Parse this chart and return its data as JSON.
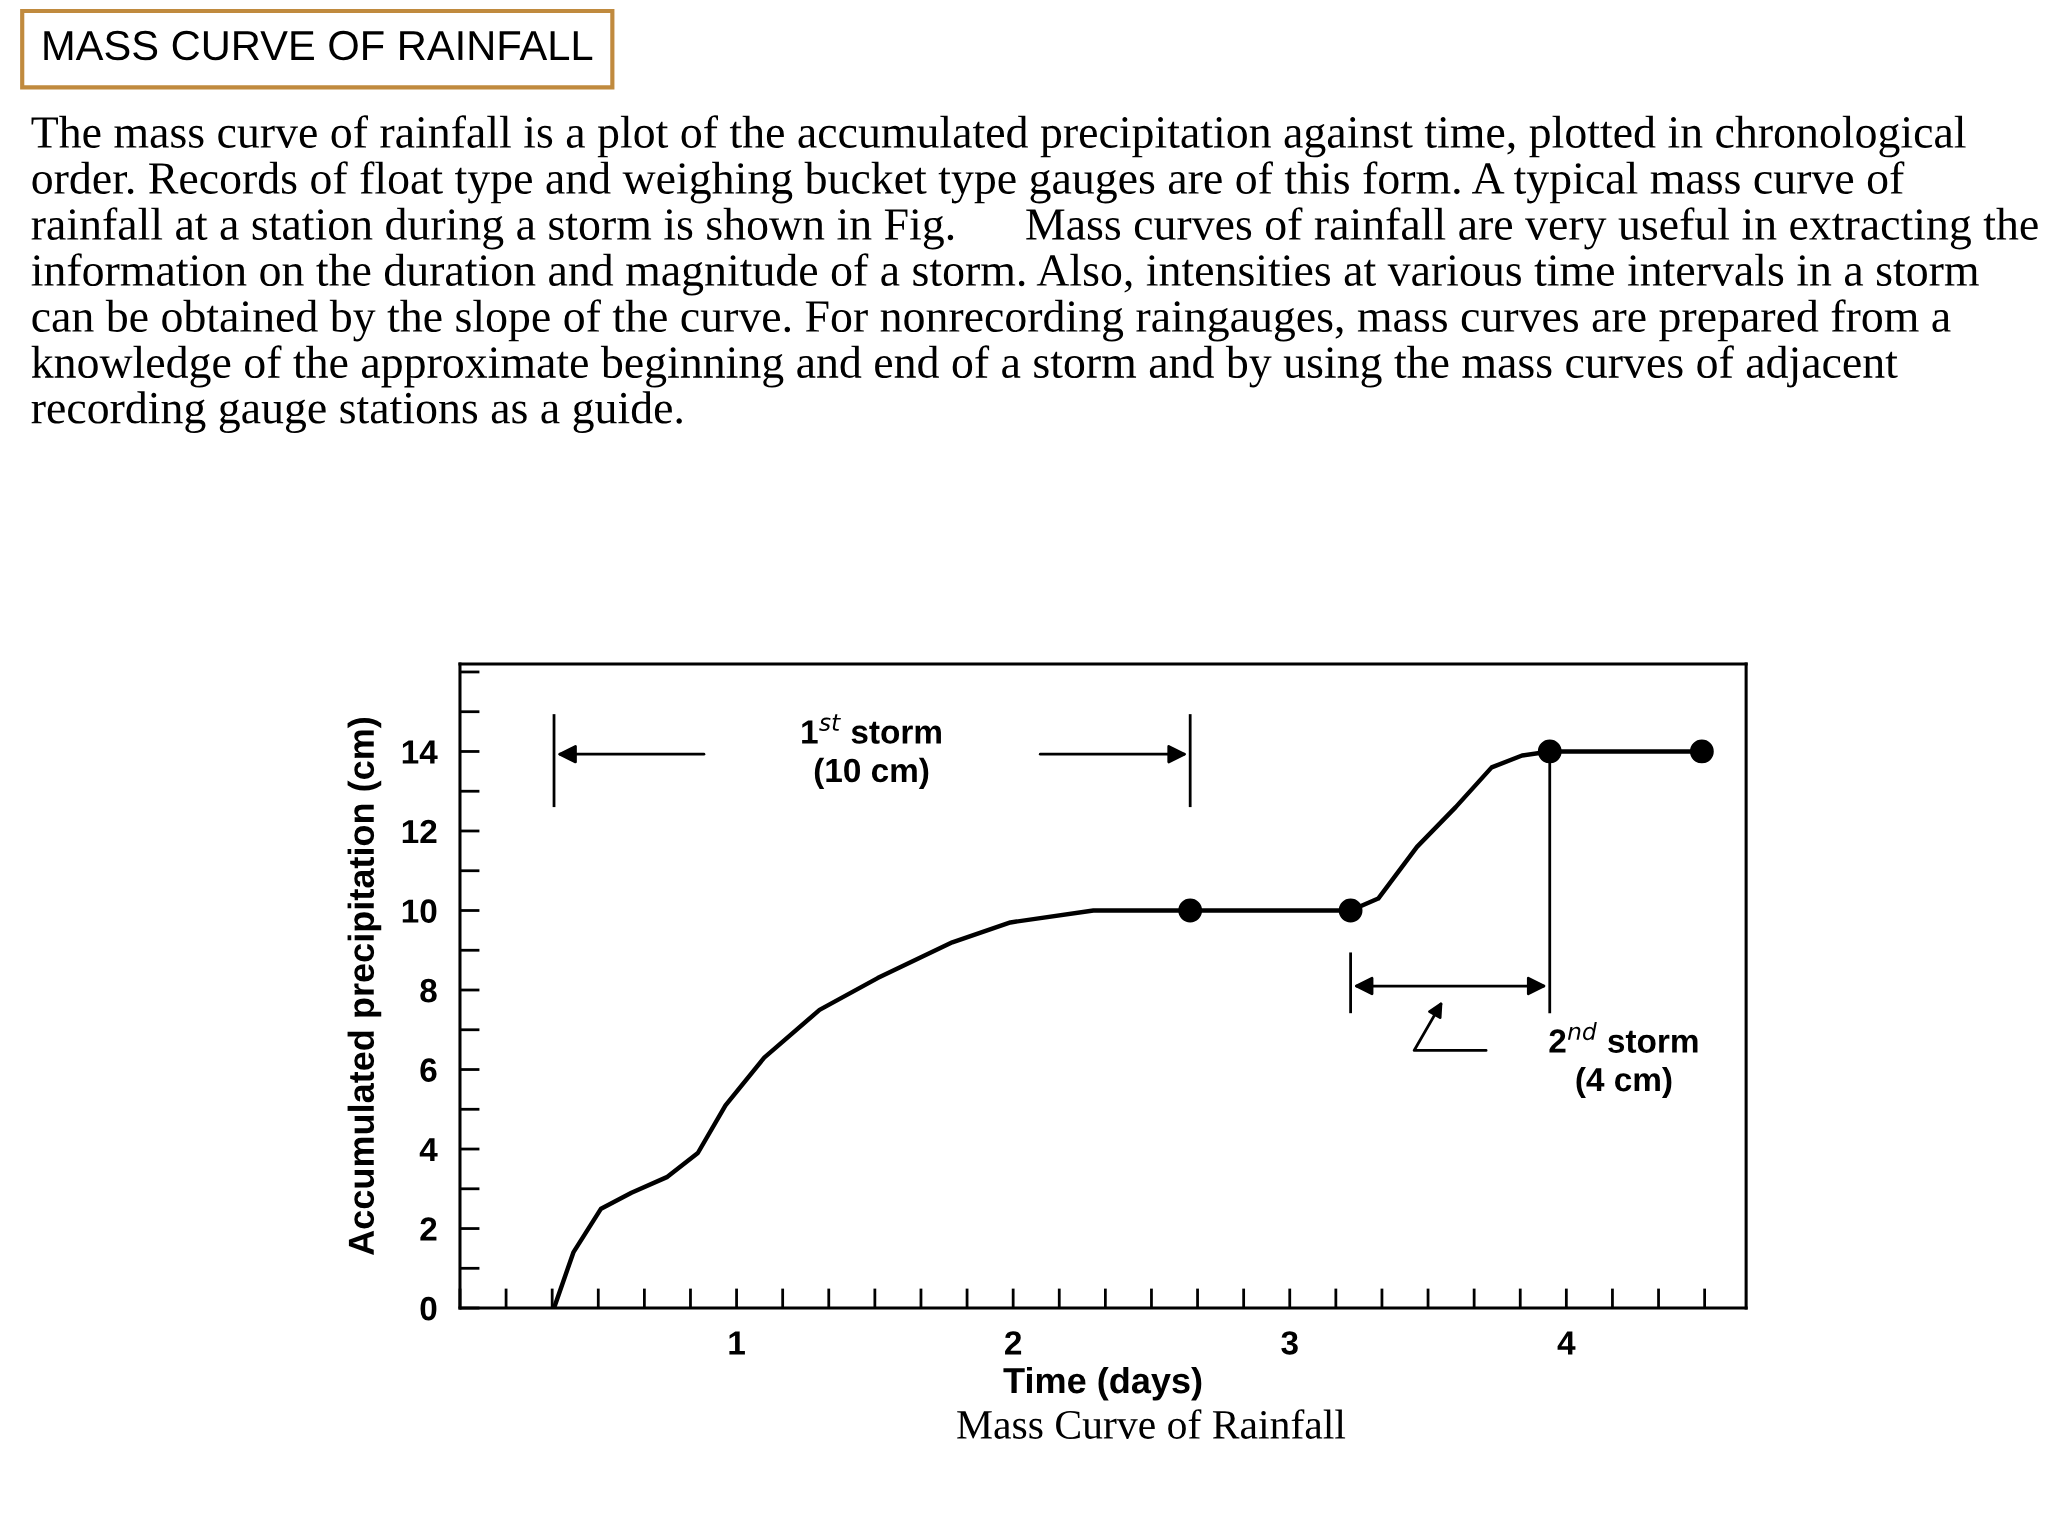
{
  "chart_data": {
    "type": "line",
    "title": "MASS CURVE OF RAINFALL",
    "subtitle": "The mass curve of rainfall is a plot of the accumulated precipitation against time, plotted in chronological order. Records of float type and weighing bucket type gauges are of this form. A typical mass curve of rainfall at a station during a storm is shown in Fig.      Mass curves of rainfall are very useful in extracting the information on the duration and magnitude of a storm. Also, intensities at various time intervals in a storm can be obtained by the slope of the curve. For nonrecording raingauges, mass curves are prepared from a knowledge of the approximate beginning and end of a storm and by using the mass curves of adjacent recording gauge stations as a guide.",
    "xlabel": "Time (days)",
    "ylabel": "Accumulated precipitation (cm)",
    "annotations": [
      "1$^{st}$ storm\n(10 cm)",
      "2$^{nd}$ storm\n(4 cm)",
      "Mass Curve of Rainfall"
    ],
    "series": [
      {
        "color": "#000000",
        "marker": "none",
        "x": [
          0.34,
          0.41,
          0.51,
          0.62,
          0.75,
          0.86,
          0.96,
          1.1,
          1.3,
          1.51,
          1.78,
          1.99,
          2.29,
          2.64,
          3.22,
          3.32,
          3.46,
          3.6,
          3.73,
          3.84,
          3.94,
          4.49
        ],
        "values": [
          0,
          1.4,
          2.5,
          2.9,
          3.3,
          3.9,
          5.1,
          6.3,
          7.5,
          8.3,
          9.2,
          9.7,
          10,
          10,
          10,
          10.3,
          11.6,
          12.6,
          13.6,
          13.9,
          14,
          14
        ]
      },
      {
        "type": "scatter",
        "color": "#000000",
        "marker": "circle",
        "x": [
          2.64,
          3.22,
          3.94,
          4.49
        ],
        "values": [
          10,
          10,
          14,
          14
        ]
      }
    ],
    "ref_lines": [
      {
        "axis": "x",
        "value": 0.34,
        "color": "#000000"
      },
      {
        "axis": "x",
        "value": 2.64,
        "color": "#000000"
      },
      {
        "axis": "x",
        "value": 3.22,
        "color": "#000000"
      },
      {
        "axis": "x",
        "value": 3.94,
        "color": "#000000"
      }
    ],
    "xlim": [
      0,
      4.65
    ],
    "ylim": [
      0,
      16.2
    ],
    "xticks": [
      1,
      2,
      3,
      4
    ],
    "yticks": [
      0,
      2,
      4,
      6,
      8,
      10,
      12,
      14
    ],
    "grid": false,
    "legend": false
  }
}
